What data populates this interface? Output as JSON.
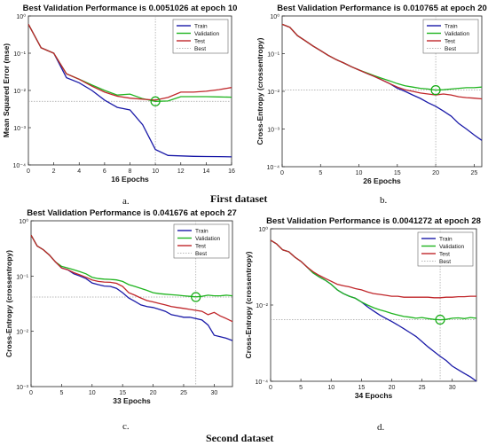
{
  "labels": {
    "first_dataset": "First dataset",
    "second_dataset": "Second dataset",
    "cap_a": "a.",
    "cap_b": "b.",
    "cap_c": "c.",
    "cap_d": "d."
  },
  "colors": {
    "train": "#1a1aa8",
    "validation": "#1fb41f",
    "test": "#c0262a",
    "best": "#a0a0a0",
    "marker": "#11aa11"
  },
  "chart_data": [
    {
      "id": "a",
      "type": "line",
      "log_y": true,
      "title": "Best Validation Performance is 0.0051026 at epoch 10",
      "xlabel": "16 Epochs",
      "ylabel": "Mean Squared Error  (mse)",
      "xlim": [
        0,
        16
      ],
      "ylim": [
        0.0001,
        1
      ],
      "xticks": [
        0,
        2,
        4,
        6,
        8,
        10,
        12,
        14,
        16
      ],
      "yticks": [
        0.0001,
        0.001,
        0.01,
        0.1,
        1
      ],
      "ytick_labels": [
        "10⁻⁴",
        "10⁻³",
        "10⁻²",
        "10⁻¹",
        "10⁰"
      ],
      "best_epoch": 10,
      "best_value": 0.0051026,
      "legend": [
        "Train",
        "Validation",
        "Test",
        "Best"
      ],
      "series": [
        {
          "name": "Train",
          "x": [
            0,
            1,
            2,
            3,
            4,
            5,
            6,
            7,
            8,
            9,
            10,
            11,
            12,
            13,
            14,
            15,
            16
          ],
          "y": [
            0.6,
            0.14,
            0.1,
            0.022,
            0.016,
            0.01,
            0.0055,
            0.0035,
            0.003,
            0.0012,
            0.00026,
            0.00018,
            0.000175,
            0.00017,
            0.000168,
            0.000167,
            0.000165
          ]
        },
        {
          "name": "Validation",
          "x": [
            0,
            1,
            2,
            3,
            4,
            5,
            6,
            7,
            8,
            9,
            10,
            11,
            12,
            13,
            14,
            15,
            16
          ],
          "y": [
            0.6,
            0.14,
            0.1,
            0.028,
            0.02,
            0.014,
            0.01,
            0.0075,
            0.008,
            0.006,
            0.0051,
            0.0052,
            0.0068,
            0.0068,
            0.0068,
            0.0067,
            0.0066
          ]
        },
        {
          "name": "Test",
          "x": [
            0,
            1,
            2,
            3,
            4,
            5,
            6,
            7,
            8,
            9,
            10,
            11,
            12,
            13,
            14,
            15,
            16
          ],
          "y": [
            0.6,
            0.14,
            0.1,
            0.028,
            0.02,
            0.013,
            0.009,
            0.007,
            0.0062,
            0.0058,
            0.0055,
            0.0065,
            0.009,
            0.009,
            0.0095,
            0.0105,
            0.012
          ]
        }
      ]
    },
    {
      "id": "b",
      "type": "line",
      "log_y": true,
      "title": "Best Validation Performance is 0.010765 at epoch 20",
      "xlabel": "26 Epochs",
      "ylabel": "Cross-Entropy  (crossentropy)",
      "xlim": [
        0,
        26
      ],
      "ylim": [
        0.0001,
        1
      ],
      "xticks": [
        0,
        5,
        10,
        15,
        20,
        25
      ],
      "yticks": [
        0.0001,
        0.001,
        0.01,
        0.1,
        1
      ],
      "ytick_labels": [
        "10⁻⁴",
        "10⁻³",
        "10⁻²",
        "10⁻¹",
        "10⁰"
      ],
      "best_epoch": 20,
      "best_value": 0.010765,
      "legend": [
        "Train",
        "Validation",
        "Test",
        "Best"
      ],
      "series": [
        {
          "name": "Train",
          "x": [
            0,
            1,
            2,
            3,
            4,
            5,
            6,
            7,
            8,
            9,
            10,
            11,
            12,
            13,
            14,
            15,
            16,
            17,
            18,
            19,
            20,
            21,
            22,
            23,
            24,
            25,
            26
          ],
          "y": [
            0.6,
            0.5,
            0.3,
            0.22,
            0.16,
            0.12,
            0.09,
            0.07,
            0.057,
            0.045,
            0.037,
            0.03,
            0.025,
            0.02,
            0.016,
            0.012,
            0.01,
            0.008,
            0.0065,
            0.005,
            0.004,
            0.003,
            0.0022,
            0.0014,
            0.001,
            0.0007,
            0.0005
          ]
        },
        {
          "name": "Validation",
          "x": [
            0,
            1,
            2,
            3,
            4,
            5,
            6,
            7,
            8,
            9,
            10,
            11,
            12,
            13,
            14,
            15,
            16,
            17,
            18,
            19,
            20,
            21,
            22,
            23,
            24,
            25,
            26
          ],
          "y": [
            0.6,
            0.5,
            0.3,
            0.22,
            0.16,
            0.12,
            0.09,
            0.07,
            0.057,
            0.045,
            0.037,
            0.031,
            0.026,
            0.022,
            0.019,
            0.016,
            0.014,
            0.013,
            0.012,
            0.0115,
            0.0108,
            0.011,
            0.0115,
            0.012,
            0.0125,
            0.0125,
            0.013
          ]
        },
        {
          "name": "Test",
          "x": [
            0,
            1,
            2,
            3,
            4,
            5,
            6,
            7,
            8,
            9,
            10,
            11,
            12,
            13,
            14,
            15,
            16,
            17,
            18,
            19,
            20,
            21,
            22,
            23,
            24,
            25,
            26
          ],
          "y": [
            0.6,
            0.5,
            0.3,
            0.22,
            0.16,
            0.12,
            0.09,
            0.07,
            0.057,
            0.045,
            0.037,
            0.03,
            0.025,
            0.02,
            0.016,
            0.013,
            0.011,
            0.01,
            0.009,
            0.0085,
            0.008,
            0.0085,
            0.008,
            0.0072,
            0.0068,
            0.0066,
            0.0063
          ]
        }
      ]
    },
    {
      "id": "c",
      "type": "line",
      "log_y": true,
      "title": "Best Validation Performance is 0.041676 at epoch 27",
      "xlabel": "33 Epochs",
      "ylabel": "Cross-Entropy  (crossentropy)",
      "xlim": [
        0,
        33
      ],
      "ylim": [
        0.001,
        1
      ],
      "xticks": [
        0,
        5,
        10,
        15,
        20,
        25,
        30
      ],
      "yticks": [
        0.001,
        0.01,
        0.1,
        1
      ],
      "ytick_labels": [
        "10⁻³",
        "10⁻²",
        "10⁻¹",
        "10⁰"
      ],
      "best_epoch": 27,
      "best_value": 0.041676,
      "legend": [
        "Train",
        "Validation",
        "Test",
        "Best"
      ],
      "series": [
        {
          "name": "Train",
          "x": [
            0,
            1,
            2,
            3,
            4,
            5,
            6,
            7,
            8,
            9,
            10,
            11,
            12,
            13,
            14,
            15,
            16,
            17,
            18,
            19,
            20,
            21,
            22,
            23,
            24,
            25,
            26,
            27,
            28,
            29,
            30,
            31,
            32,
            33
          ],
          "y": [
            0.55,
            0.35,
            0.3,
            0.24,
            0.18,
            0.14,
            0.13,
            0.11,
            0.1,
            0.09,
            0.075,
            0.07,
            0.066,
            0.065,
            0.06,
            0.05,
            0.04,
            0.035,
            0.03,
            0.028,
            0.027,
            0.025,
            0.023,
            0.02,
            0.019,
            0.018,
            0.018,
            0.017,
            0.016,
            0.013,
            0.0085,
            0.008,
            0.0075,
            0.0068
          ]
        },
        {
          "name": "Validation",
          "x": [
            0,
            1,
            2,
            3,
            4,
            5,
            6,
            7,
            8,
            9,
            10,
            11,
            12,
            13,
            14,
            15,
            16,
            17,
            18,
            19,
            20,
            21,
            22,
            23,
            24,
            25,
            26,
            27,
            28,
            29,
            30,
            31,
            32,
            33
          ],
          "y": [
            0.55,
            0.35,
            0.3,
            0.24,
            0.18,
            0.15,
            0.14,
            0.13,
            0.12,
            0.11,
            0.095,
            0.09,
            0.088,
            0.087,
            0.085,
            0.08,
            0.07,
            0.065,
            0.06,
            0.055,
            0.05,
            0.048,
            0.047,
            0.046,
            0.045,
            0.044,
            0.043,
            0.042,
            0.043,
            0.045,
            0.044,
            0.044,
            0.045,
            0.044
          ]
        },
        {
          "name": "Test",
          "x": [
            0,
            1,
            2,
            3,
            4,
            5,
            6,
            7,
            8,
            9,
            10,
            11,
            12,
            13,
            14,
            15,
            16,
            17,
            18,
            19,
            20,
            21,
            22,
            23,
            24,
            25,
            26,
            27,
            28,
            29,
            30,
            31,
            32,
            33
          ],
          "y": [
            0.55,
            0.35,
            0.3,
            0.24,
            0.18,
            0.14,
            0.13,
            0.115,
            0.105,
            0.095,
            0.085,
            0.08,
            0.078,
            0.077,
            0.074,
            0.065,
            0.05,
            0.045,
            0.04,
            0.036,
            0.034,
            0.032,
            0.03,
            0.028,
            0.027,
            0.026,
            0.025,
            0.024,
            0.023,
            0.02,
            0.022,
            0.019,
            0.017,
            0.015
          ]
        }
      ]
    },
    {
      "id": "d",
      "type": "line",
      "log_y": true,
      "title": "Best Validation Performance is 0.0041272 at epoch 28",
      "xlabel": "34 Epochs",
      "ylabel": "Cross-Entropy  (crossentropy)",
      "xlim": [
        0,
        34
      ],
      "ylim": [
        0.0001,
        1
      ],
      "xticks": [
        0,
        5,
        10,
        15,
        20,
        25,
        30
      ],
      "yticks": [
        0.0001,
        0.01,
        1
      ],
      "ytick_labels": [
        "10⁻⁴",
        "10⁻²",
        "10⁰"
      ],
      "best_epoch": 28,
      "best_value": 0.0041272,
      "legend": [
        "Train",
        "Validation",
        "Test",
        "Best"
      ],
      "series": [
        {
          "name": "Train",
          "x": [
            0,
            1,
            2,
            3,
            4,
            5,
            6,
            7,
            8,
            9,
            10,
            11,
            12,
            13,
            14,
            15,
            16,
            17,
            18,
            19,
            20,
            21,
            22,
            23,
            24,
            25,
            26,
            27,
            28,
            29,
            30,
            31,
            32,
            33,
            34
          ],
          "y": [
            0.5,
            0.4,
            0.28,
            0.25,
            0.18,
            0.14,
            0.1,
            0.07,
            0.055,
            0.045,
            0.035,
            0.025,
            0.02,
            0.017,
            0.015,
            0.012,
            0.009,
            0.007,
            0.0055,
            0.0045,
            0.0037,
            0.003,
            0.0024,
            0.0019,
            0.0015,
            0.0011,
            0.0008,
            0.0006,
            0.00045,
            0.00035,
            0.00025,
            0.0002,
            0.00016,
            0.00013,
            0.0001
          ]
        },
        {
          "name": "Validation",
          "x": [
            0,
            1,
            2,
            3,
            4,
            5,
            6,
            7,
            8,
            9,
            10,
            11,
            12,
            13,
            14,
            15,
            16,
            17,
            18,
            19,
            20,
            21,
            22,
            23,
            24,
            25,
            26,
            27,
            28,
            29,
            30,
            31,
            32,
            33,
            34
          ],
          "y": [
            0.5,
            0.4,
            0.28,
            0.25,
            0.18,
            0.14,
            0.1,
            0.07,
            0.055,
            0.045,
            0.035,
            0.025,
            0.02,
            0.017,
            0.015,
            0.012,
            0.01,
            0.0085,
            0.0075,
            0.0068,
            0.006,
            0.0055,
            0.005,
            0.0048,
            0.0045,
            0.0047,
            0.0044,
            0.0042,
            0.0041,
            0.0042,
            0.0045,
            0.0046,
            0.0044,
            0.0047,
            0.0045
          ]
        },
        {
          "name": "Test",
          "x": [
            0,
            1,
            2,
            3,
            4,
            5,
            6,
            7,
            8,
            9,
            10,
            11,
            12,
            13,
            14,
            15,
            16,
            17,
            18,
            19,
            20,
            21,
            22,
            23,
            24,
            25,
            26,
            27,
            28,
            29,
            30,
            31,
            32,
            33,
            34
          ],
          "y": [
            0.5,
            0.4,
            0.28,
            0.25,
            0.18,
            0.14,
            0.1,
            0.075,
            0.06,
            0.05,
            0.042,
            0.035,
            0.032,
            0.03,
            0.027,
            0.025,
            0.022,
            0.02,
            0.019,
            0.018,
            0.017,
            0.017,
            0.016,
            0.016,
            0.016,
            0.016,
            0.016,
            0.0155,
            0.0155,
            0.016,
            0.016,
            0.0165,
            0.0165,
            0.017,
            0.017
          ]
        }
      ]
    }
  ]
}
